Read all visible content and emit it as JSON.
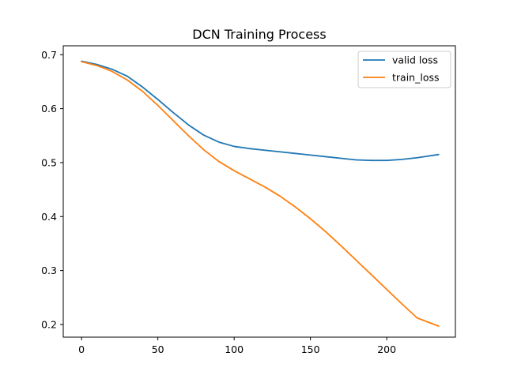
{
  "chart_data": {
    "type": "line",
    "title": "DCN Training Process",
    "xlabel": "",
    "ylabel": "",
    "xlim": [
      -12,
      245
    ],
    "ylim": [
      0.1765,
      0.7165
    ],
    "xticks": [
      0,
      50,
      100,
      150,
      200
    ],
    "yticks": [
      0.2,
      0.3,
      0.4,
      0.5,
      0.6,
      0.7
    ],
    "xtick_labels": [
      "0",
      "50",
      "100",
      "150",
      "200"
    ],
    "ytick_labels": [
      "0.2",
      "0.3",
      "0.4",
      "0.5",
      "0.6",
      "0.7"
    ],
    "grid": false,
    "legend": "top-right",
    "series": [
      {
        "name": "valid loss",
        "color": "#1f77b4",
        "x": [
          0,
          10,
          20,
          30,
          40,
          50,
          60,
          70,
          80,
          90,
          100,
          110,
          120,
          130,
          140,
          150,
          160,
          170,
          180,
          190,
          200,
          210,
          220,
          234
        ],
        "y": [
          0.688,
          0.682,
          0.673,
          0.66,
          0.64,
          0.617,
          0.593,
          0.57,
          0.551,
          0.538,
          0.53,
          0.526,
          0.523,
          0.52,
          0.517,
          0.514,
          0.511,
          0.508,
          0.505,
          0.504,
          0.504,
          0.506,
          0.509,
          0.515
        ]
      },
      {
        "name": "train_loss",
        "color": "#ff7f0e",
        "x": [
          0,
          10,
          20,
          30,
          40,
          50,
          60,
          70,
          80,
          90,
          100,
          110,
          120,
          130,
          140,
          150,
          160,
          170,
          180,
          190,
          200,
          210,
          220,
          234
        ],
        "y": [
          0.687,
          0.68,
          0.669,
          0.653,
          0.632,
          0.606,
          0.578,
          0.55,
          0.524,
          0.502,
          0.485,
          0.47,
          0.455,
          0.438,
          0.418,
          0.396,
          0.372,
          0.346,
          0.319,
          0.292,
          0.265,
          0.238,
          0.212,
          0.197
        ]
      }
    ]
  }
}
